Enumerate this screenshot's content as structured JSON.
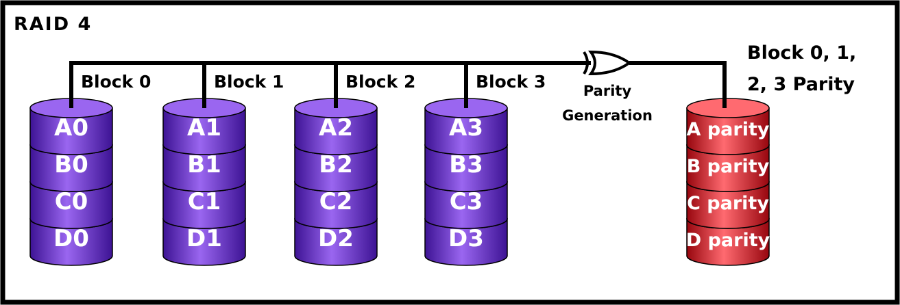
{
  "title": "RAID 4",
  "colors": {
    "data_disk": "#6a2ed8",
    "data_disk_dark": "#3d1394",
    "data_disk_light": "#9a66f0",
    "parity_disk": "#e0212b",
    "parity_disk_dark": "#97060e",
    "parity_disk_light": "#ff6a70",
    "line": "#000000"
  },
  "disks": [
    {
      "block_label": "Block 0",
      "segments": [
        "A0",
        "B0",
        "C0",
        "D0"
      ]
    },
    {
      "block_label": "Block 1",
      "segments": [
        "A1",
        "B1",
        "C1",
        "D1"
      ]
    },
    {
      "block_label": "Block 2",
      "segments": [
        "A2",
        "B2",
        "C2",
        "D2"
      ]
    },
    {
      "block_label": "Block 3",
      "segments": [
        "A3",
        "B3",
        "C3",
        "D3"
      ]
    }
  ],
  "parity_generation": {
    "icon": "xor-gate-icon",
    "line1": "Parity",
    "line2": "Generation"
  },
  "parity_disk": {
    "label_line1": "Block 0, 1,",
    "label_line2": "2, 3 Parity",
    "segments": [
      "A parity",
      "B parity",
      "C parity",
      "D parity"
    ]
  }
}
